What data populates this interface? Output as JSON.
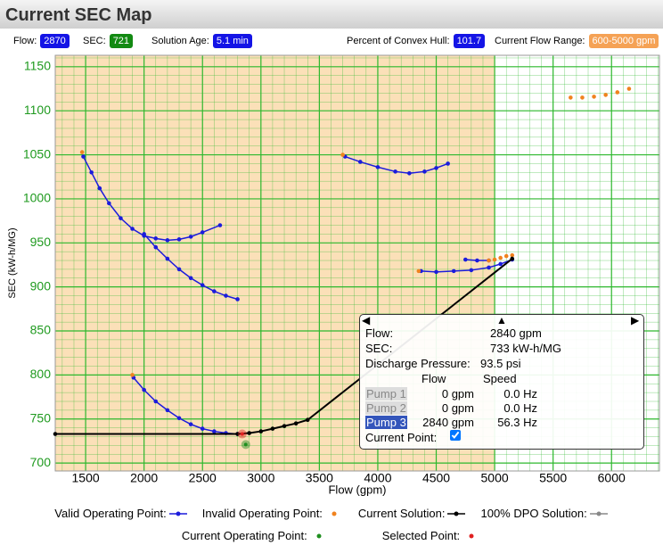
{
  "header": {
    "title": "Current SEC Map"
  },
  "status": {
    "left": [
      {
        "label": "Flow:",
        "value": "2870"
      },
      {
        "label": "SEC:",
        "value": "721"
      },
      {
        "label": "Solution Age:",
        "value": "5.1 min"
      }
    ],
    "right": [
      {
        "label": "Percent of Convex Hull:",
        "value": "101.7"
      },
      {
        "label": "Current Flow Range:",
        "value": "600-5000 gpm"
      }
    ]
  },
  "chart_data": {
    "type": "scatter",
    "xlabel": "Flow (gpm)",
    "ylabel": "SEC (kW-h/MG)",
    "xlim": [
      1240,
      6410
    ],
    "ylim": [
      691,
      1163
    ],
    "xticks": [
      1500,
      2000,
      2500,
      3000,
      3500,
      4000,
      4500,
      5000,
      5500,
      6000
    ],
    "yticks": [
      700,
      750,
      800,
      850,
      900,
      950,
      1000,
      1050,
      1100,
      1150
    ],
    "grid": true,
    "grid_color": "#2db82d",
    "shaded_range": [
      600,
      5000
    ],
    "shade_color": "#fbe0b8",
    "series": [
      {
        "name": "Valid Operating Point:",
        "color": "#1c1cdc",
        "style": "line-dot",
        "x": [
          1480,
          1550,
          1620,
          1700,
          1800,
          1900,
          2000,
          2100,
          2200,
          2300,
          2400,
          2500,
          2650,
          null,
          2000,
          2100,
          2200,
          2300,
          2400,
          2500,
          2600,
          2700,
          2800,
          null,
          3720,
          3850,
          4000,
          4150,
          4270,
          4400,
          4500,
          4600,
          null,
          4370,
          4500,
          4650,
          4800,
          4950,
          5050,
          5150,
          null,
          4750,
          4850,
          4950,
          null,
          1910,
          2000,
          2100,
          2200,
          2300,
          2400,
          2500,
          2600,
          2700,
          2800
        ],
        "y": [
          1048,
          1030,
          1012,
          995,
          978,
          966,
          958,
          955,
          953,
          954,
          957,
          962,
          970,
          null,
          960,
          945,
          932,
          920,
          910,
          902,
          895,
          890,
          886,
          null,
          1048,
          1042,
          1036,
          1031,
          1029,
          1031,
          1035,
          1040,
          null,
          918,
          917,
          918,
          919,
          922,
          926,
          931,
          null,
          931,
          930,
          930,
          null,
          797,
          783,
          770,
          760,
          751,
          744,
          739,
          736,
          734,
          733
        ]
      },
      {
        "name": "Invalid Operating Point:",
        "color": "#f0821e",
        "style": "dot",
        "x": [
          1470,
          3700,
          4350,
          1900,
          4950,
          5000,
          5050,
          5100,
          5150,
          5650,
          5750,
          5850,
          5950,
          6050,
          6150
        ],
        "y": [
          1053,
          1050,
          918,
          800,
          930,
          931,
          933,
          935,
          936,
          1115,
          1115,
          1116,
          1118,
          1121,
          1125
        ]
      },
      {
        "name": "Current Solution:",
        "color": "#000000",
        "style": "line-dot",
        "x": [
          1240,
          2800,
          2900,
          3000,
          3100,
          3200,
          3300,
          3400,
          5150
        ],
        "y": [
          733,
          733,
          734,
          736,
          739,
          742,
          745,
          749,
          932
        ]
      },
      {
        "name": "100% DPO Solution:",
        "color": "#888888",
        "style": "line-dot",
        "x": [],
        "y": []
      },
      {
        "name": "Current Operating Point:",
        "color": "#1f8f1f",
        "style": "dot",
        "x": [
          2870
        ],
        "y": [
          721
        ]
      },
      {
        "name": "Selected Point:",
        "color": "#e02020",
        "style": "dot",
        "x": [
          2840
        ],
        "y": [
          733
        ]
      }
    ]
  },
  "tooltip": {
    "rows": [
      {
        "label": "Flow:",
        "value": "2840 gpm"
      },
      {
        "label": "SEC:",
        "value": "733 kW-h/MG"
      },
      {
        "label": "Discharge Pressure:",
        "value": "93.5 psi"
      }
    ],
    "columns": [
      "Flow",
      "Speed"
    ],
    "pumps": [
      {
        "name": "Pump 1",
        "flow": "0 gpm",
        "speed": "0.0 Hz"
      },
      {
        "name": "Pump 2",
        "flow": "0 gpm",
        "speed": "0.0 Hz"
      },
      {
        "name": "Pump 3",
        "flow": "2840 gpm",
        "speed": "56.3 Hz"
      }
    ],
    "current_label": "Current Point:",
    "checked": true
  }
}
